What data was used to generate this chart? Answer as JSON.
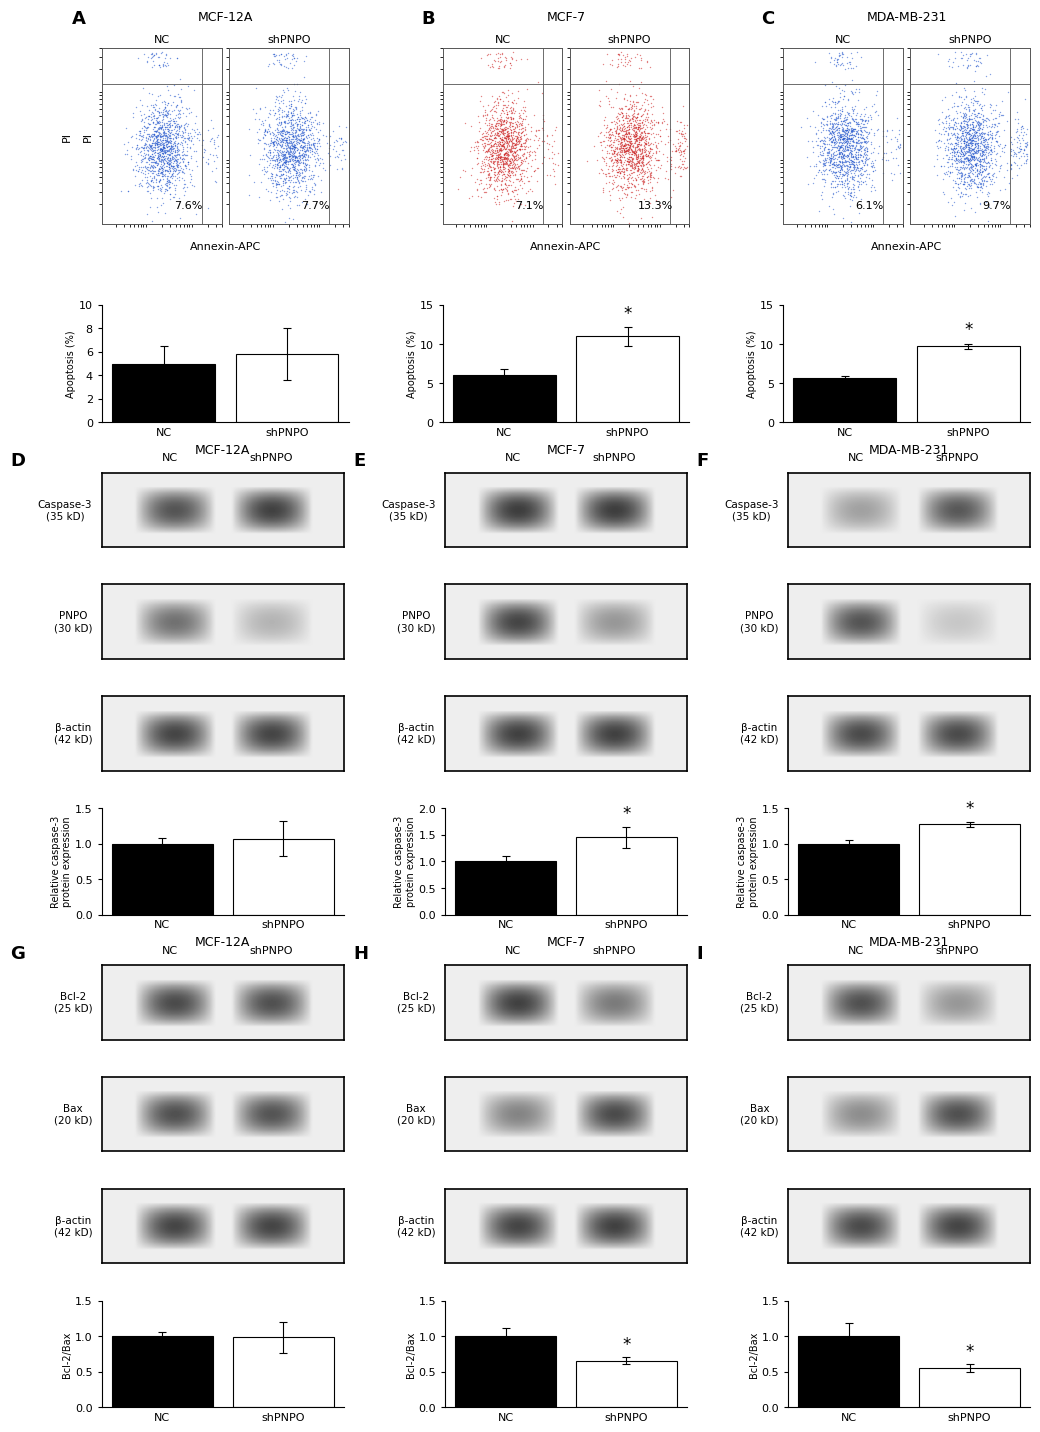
{
  "fig_width": 10.2,
  "fig_height": 14.01,
  "dpi": 100,
  "background": "#ffffff",
  "flow_titles": [
    "MCF-12A",
    "MCF-7",
    "MDA-MB-231"
  ],
  "flow_percentages": [
    [
      "7.6%",
      "7.7%"
    ],
    [
      "7.1%",
      "13.3%"
    ],
    [
      "6.1%",
      "9.7%"
    ]
  ],
  "flow_dot_colors": [
    "#2255cc",
    "#cc2222",
    "#2255cc"
  ],
  "bar_apoptosis_NC": [
    5.0,
    6.0,
    5.6
  ],
  "bar_apoptosis_shPNPO": [
    5.8,
    11.0,
    9.7
  ],
  "bar_apoptosis_NC_err": [
    1.5,
    0.8,
    0.25
  ],
  "bar_apoptosis_shPNPO_err": [
    2.2,
    1.2,
    0.35
  ],
  "bar_apoptosis_ylim_A": [
    0,
    10
  ],
  "bar_apoptosis_ylim_BC": [
    0,
    15
  ],
  "bar_apoptosis_yticks_A": [
    0,
    2,
    4,
    6,
    8,
    10
  ],
  "bar_apoptosis_yticks_BC": [
    0,
    5,
    10,
    15
  ],
  "bar_apoptosis_ylabel": "Apoptosis (%)",
  "bar_apoptosis_sig": [
    false,
    true,
    true
  ],
  "wb_titles_DEF": [
    "MCF-12A",
    "MCF-7",
    "MDA-MB-231"
  ],
  "wb_row_labels_DEF": [
    "Caspase-3\n(35 kD)",
    "PNPO\n(30 kD)",
    "β-actin\n(42 kD)"
  ],
  "bar_caspase_NC": [
    1.0,
    1.0,
    1.0
  ],
  "bar_caspase_shPNPO": [
    1.07,
    1.45,
    1.27
  ],
  "bar_caspase_NC_err": [
    0.08,
    0.1,
    0.05
  ],
  "bar_caspase_shPNPO_err": [
    0.25,
    0.2,
    0.04
  ],
  "bar_caspase_ylim_D": [
    0,
    1.5
  ],
  "bar_caspase_ylim_E": [
    0,
    2.0
  ],
  "bar_caspase_ylim_F": [
    0,
    1.5
  ],
  "bar_caspase_yticks_D": [
    0.0,
    0.5,
    1.0,
    1.5
  ],
  "bar_caspase_yticks_E": [
    0.0,
    0.5,
    1.0,
    1.5,
    2.0
  ],
  "bar_caspase_yticks_F": [
    0.0,
    0.5,
    1.0,
    1.5
  ],
  "bar_caspase_ylabel": "Relative caspase-3\nprotein expression",
  "bar_caspase_sig": [
    false,
    true,
    true
  ],
  "wb_titles_GHI": [
    "MCF-12A",
    "MCF-7",
    "MDA-MB-231"
  ],
  "wb_row_labels_GHI": [
    "Bcl-2\n(25 kD)",
    "Bax\n(20 kD)",
    "β-actin\n(42 kD)"
  ],
  "bar_bcl2_NC": [
    1.0,
    1.0,
    1.0
  ],
  "bar_bcl2_shPNPO": [
    0.98,
    0.65,
    0.55
  ],
  "bar_bcl2_NC_err": [
    0.05,
    0.12,
    0.18
  ],
  "bar_bcl2_shPNPO_err": [
    0.22,
    0.05,
    0.05
  ],
  "bar_bcl2_ylim": [
    0,
    1.5
  ],
  "bar_bcl2_yticks": [
    0.0,
    0.5,
    1.0,
    1.5
  ],
  "bar_bcl2_ylabel": "Bcl-2/Bax",
  "bar_bcl2_sig": [
    false,
    true,
    true
  ],
  "bar_color_NC": "#000000",
  "bar_color_shPNPO": "#ffffff",
  "bar_edge_color": "#000000",
  "xlabel_NC": "NC",
  "xlabel_shPNPO": "shPNPO",
  "sig_marker": "*",
  "sig_fontsize": 12,
  "tick_fontsize": 8,
  "title_fontsize": 9,
  "panel_label_fontsize": 13,
  "ylabel_fontsize": 7,
  "wb_label_fontsize": 7.5
}
